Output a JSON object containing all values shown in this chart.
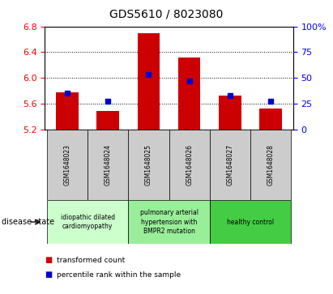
{
  "title": "GDS5610 / 8023080",
  "samples": [
    "GSM1648023",
    "GSM1648024",
    "GSM1648025",
    "GSM1648026",
    "GSM1648027",
    "GSM1648028"
  ],
  "transformed_count": [
    5.78,
    5.48,
    6.7,
    6.32,
    5.72,
    5.52
  ],
  "percentile_rank": [
    35,
    27,
    53,
    47,
    33,
    27
  ],
  "ylim_left": [
    5.2,
    6.8
  ],
  "ylim_right": [
    0,
    100
  ],
  "yticks_left": [
    5.2,
    5.6,
    6.0,
    6.4,
    6.8
  ],
  "yticks_right": [
    0,
    25,
    50,
    75,
    100
  ],
  "bar_color": "#cc0000",
  "marker_color": "#0000cc",
  "bar_width": 0.55,
  "disease_groups": [
    {
      "label": "idiopathic dilated\ncardiomyopathy",
      "indices": [
        0,
        1
      ],
      "color": "#ccffcc"
    },
    {
      "label": "pulmonary arterial\nhypertension with\nBMPR2 mutation",
      "indices": [
        2,
        3
      ],
      "color": "#99ee99"
    },
    {
      "label": "healthy control",
      "indices": [
        4,
        5
      ],
      "color": "#44cc44"
    }
  ],
  "legend_red": "transformed count",
  "legend_blue": "percentile rank within the sample",
  "disease_state_label": "disease state",
  "grid_color": "black",
  "title_fontsize": 10,
  "axis_fontsize": 8,
  "sample_fontsize": 5.5,
  "disease_fontsize": 5.5,
  "legend_fontsize": 6.5
}
